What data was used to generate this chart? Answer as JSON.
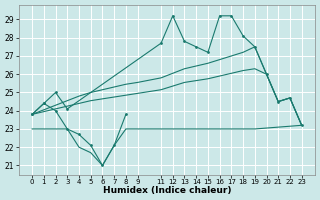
{
  "xlabel": "Humidex (Indice chaleur)",
  "color": "#1a7a6e",
  "bg_color": "#cce8e8",
  "grid_color": "#ffffff",
  "ylim": [
    20.5,
    29.8
  ],
  "yticks": [
    21,
    22,
    23,
    24,
    25,
    26,
    27,
    28,
    29
  ],
  "xticks": [
    0,
    1,
    2,
    3,
    4,
    5,
    6,
    7,
    8,
    9,
    11,
    12,
    13,
    14,
    15,
    16,
    17,
    18,
    19,
    20,
    21,
    22,
    23
  ],
  "line_upper_x": [
    0,
    1,
    2,
    3,
    11,
    12,
    13,
    14,
    15,
    16,
    17,
    18,
    19,
    20,
    21,
    22,
    23
  ],
  "line_upper_y": [
    23.8,
    24.4,
    25.0,
    24.1,
    27.7,
    29.2,
    27.8,
    27.5,
    27.2,
    29.2,
    29.2,
    28.1,
    27.5,
    26.0,
    24.5,
    24.7,
    23.2
  ],
  "line_mid1_x": [
    0,
    1,
    2,
    3,
    4,
    5,
    6,
    7,
    8,
    9,
    11,
    12,
    13,
    14,
    15,
    16,
    17,
    18,
    19,
    20,
    21,
    22,
    23
  ],
  "line_mid1_y": [
    23.8,
    24.05,
    24.3,
    24.55,
    24.8,
    25.0,
    25.15,
    25.3,
    25.45,
    25.55,
    25.8,
    26.05,
    26.3,
    26.45,
    26.6,
    26.8,
    27.0,
    27.2,
    27.5,
    26.0,
    24.5,
    24.7,
    23.2
  ],
  "line_mid2_x": [
    0,
    1,
    2,
    3,
    4,
    5,
    6,
    7,
    8,
    9,
    11,
    12,
    13,
    14,
    15,
    16,
    17,
    18,
    19,
    20,
    21,
    22,
    23
  ],
  "line_mid2_y": [
    23.8,
    23.95,
    24.1,
    24.25,
    24.4,
    24.55,
    24.65,
    24.75,
    24.85,
    24.95,
    25.15,
    25.35,
    25.55,
    25.65,
    25.75,
    25.9,
    26.05,
    26.2,
    26.3,
    26.0,
    24.5,
    24.7,
    23.2
  ],
  "line_low_x": [
    0,
    3,
    4,
    5,
    6,
    7,
    8,
    9,
    11,
    19,
    23
  ],
  "line_low_y": [
    23.0,
    23.0,
    22.0,
    21.7,
    21.0,
    22.1,
    23.0,
    23.0,
    23.0,
    23.0,
    23.2
  ],
  "line_zigzag_x": [
    0,
    1,
    2,
    3,
    4,
    5,
    6,
    7,
    8
  ],
  "line_zigzag_y": [
    23.8,
    24.4,
    24.0,
    23.0,
    22.7,
    22.1,
    21.0,
    22.1,
    23.8
  ]
}
